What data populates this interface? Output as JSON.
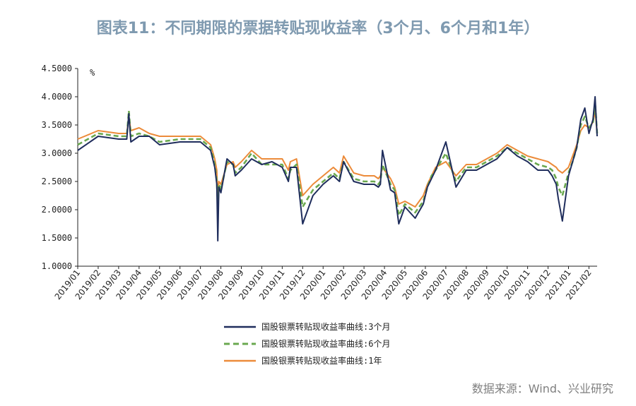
{
  "title": "图表11：不同期限的票据转贴现收益率（3个月、6个月和1年）",
  "source": "数据来源：Wind、兴业研究",
  "colors": {
    "s3m": "#1f2d5c",
    "s6m": "#6aa84f",
    "s1y": "#ec8b3a",
    "title": "#7f9ab0"
  },
  "chart_data": {
    "type": "line",
    "title": "图表11：不同期限的票据转贴现收益率（3个月、6个月和1年）",
    "ylabel": "%",
    "ylim": [
      1.0,
      4.5
    ],
    "yticks": [
      "4.5000",
      "4.0000",
      "3.5000",
      "3.0000",
      "2.5000",
      "2.0000",
      "1.5000",
      "1.0000"
    ],
    "ytick_values": [
      4.5,
      4.0,
      3.5,
      3.0,
      2.5,
      2.0,
      1.5,
      1.0
    ],
    "categories": [
      "2019/01",
      "2019/02",
      "2019/03",
      "2019/04",
      "2019/05",
      "2019/06",
      "2019/07",
      "2019/08",
      "2019/09",
      "2019/10",
      "2019/11",
      "2019/12",
      "2020/01",
      "2020/02",
      "2020/03",
      "2020/04",
      "2020/05",
      "2020/06",
      "2020/07",
      "2020/08",
      "2020/09",
      "2020/10",
      "2020/11",
      "2020/12",
      "2021/01",
      "2021/02"
    ],
    "x": [
      0.0,
      1.0,
      2.0,
      2.4,
      2.5,
      2.6,
      3.0,
      3.5,
      4.0,
      5.0,
      6.0,
      6.5,
      6.7,
      6.8,
      6.85,
      6.9,
      7.0,
      7.3,
      7.6,
      7.7,
      8.0,
      8.5,
      9.0,
      9.5,
      10.0,
      10.3,
      10.4,
      10.7,
      11.0,
      11.5,
      12.0,
      12.5,
      12.8,
      13.0,
      13.5,
      14.0,
      14.5,
      14.7,
      14.8,
      14.9,
      15.3,
      15.5,
      15.7,
      16.0,
      16.5,
      16.9,
      17.1,
      17.3,
      17.5,
      18.0,
      18.5,
      19.0,
      19.5,
      20.0,
      20.5,
      21.0,
      21.5,
      22.0,
      22.5,
      23.0,
      23.2,
      23.4,
      23.5,
      23.7,
      24.0,
      24.2,
      24.4,
      24.6,
      24.8,
      25.0,
      25.2,
      25.3,
      25.4
    ],
    "series": [
      {
        "name": "国股银票转贴现收益率曲线:3个月",
        "style": "solid",
        "values": [
          3.05,
          3.3,
          3.25,
          3.25,
          3.7,
          3.2,
          3.3,
          3.3,
          3.15,
          3.2,
          3.2,
          3.05,
          2.75,
          2.45,
          1.45,
          2.4,
          2.3,
          2.9,
          2.8,
          2.6,
          2.7,
          2.9,
          2.8,
          2.85,
          2.75,
          2.5,
          2.75,
          2.75,
          1.75,
          2.25,
          2.45,
          2.6,
          2.5,
          2.85,
          2.5,
          2.45,
          2.45,
          2.4,
          2.45,
          3.05,
          2.35,
          2.3,
          1.75,
          2.05,
          1.85,
          2.1,
          2.4,
          2.55,
          2.7,
          3.2,
          2.4,
          2.7,
          2.7,
          2.8,
          2.9,
          3.1,
          2.95,
          2.85,
          2.7,
          2.7,
          2.6,
          2.45,
          2.2,
          1.8,
          2.6,
          2.85,
          3.1,
          3.6,
          3.8,
          3.35,
          3.6,
          4.0,
          3.3
        ]
      },
      {
        "name": "国股银票转贴现收益率曲线:6个月",
        "style": "dashed",
        "values": [
          3.15,
          3.35,
          3.3,
          3.3,
          3.75,
          3.3,
          3.35,
          3.3,
          3.2,
          3.25,
          3.25,
          3.1,
          2.8,
          2.5,
          2.05,
          2.45,
          2.35,
          2.85,
          2.8,
          2.65,
          2.75,
          3.0,
          2.8,
          2.8,
          2.8,
          2.55,
          2.7,
          2.8,
          2.05,
          2.35,
          2.5,
          2.65,
          2.55,
          2.85,
          2.55,
          2.5,
          2.5,
          2.45,
          2.5,
          2.8,
          2.45,
          2.35,
          1.9,
          2.1,
          1.95,
          2.15,
          2.4,
          2.6,
          2.7,
          3.0,
          2.5,
          2.75,
          2.75,
          2.85,
          2.95,
          3.1,
          3.0,
          2.9,
          2.8,
          2.75,
          2.7,
          2.55,
          2.4,
          2.25,
          2.65,
          2.85,
          3.1,
          3.5,
          3.65,
          3.45,
          3.55,
          3.9,
          3.35
        ]
      },
      {
        "name": "国股银票转贴现收益率曲线:1年",
        "style": "solid",
        "values": [
          3.25,
          3.4,
          3.35,
          3.35,
          3.65,
          3.4,
          3.45,
          3.35,
          3.3,
          3.3,
          3.3,
          3.15,
          2.9,
          2.7,
          2.2,
          2.5,
          2.45,
          2.8,
          2.85,
          2.75,
          2.85,
          3.05,
          2.9,
          2.9,
          2.9,
          2.7,
          2.85,
          2.9,
          2.25,
          2.45,
          2.6,
          2.75,
          2.65,
          2.95,
          2.65,
          2.6,
          2.6,
          2.55,
          2.6,
          2.75,
          2.55,
          2.4,
          2.1,
          2.15,
          2.05,
          2.25,
          2.45,
          2.6,
          2.75,
          2.85,
          2.6,
          2.8,
          2.8,
          2.9,
          3.0,
          3.15,
          3.05,
          2.95,
          2.9,
          2.85,
          2.8,
          2.75,
          2.7,
          2.65,
          2.75,
          2.95,
          3.15,
          3.4,
          3.5,
          3.45,
          3.55,
          3.75,
          3.35
        ]
      }
    ],
    "legend": [
      "国股银票转贴现收益率曲线:3个月",
      "国股银票转贴现收益率曲线:6个月",
      "国股银票转贴现收益率曲线:1年"
    ],
    "legend_placement": "bottom-center",
    "grid": false
  }
}
